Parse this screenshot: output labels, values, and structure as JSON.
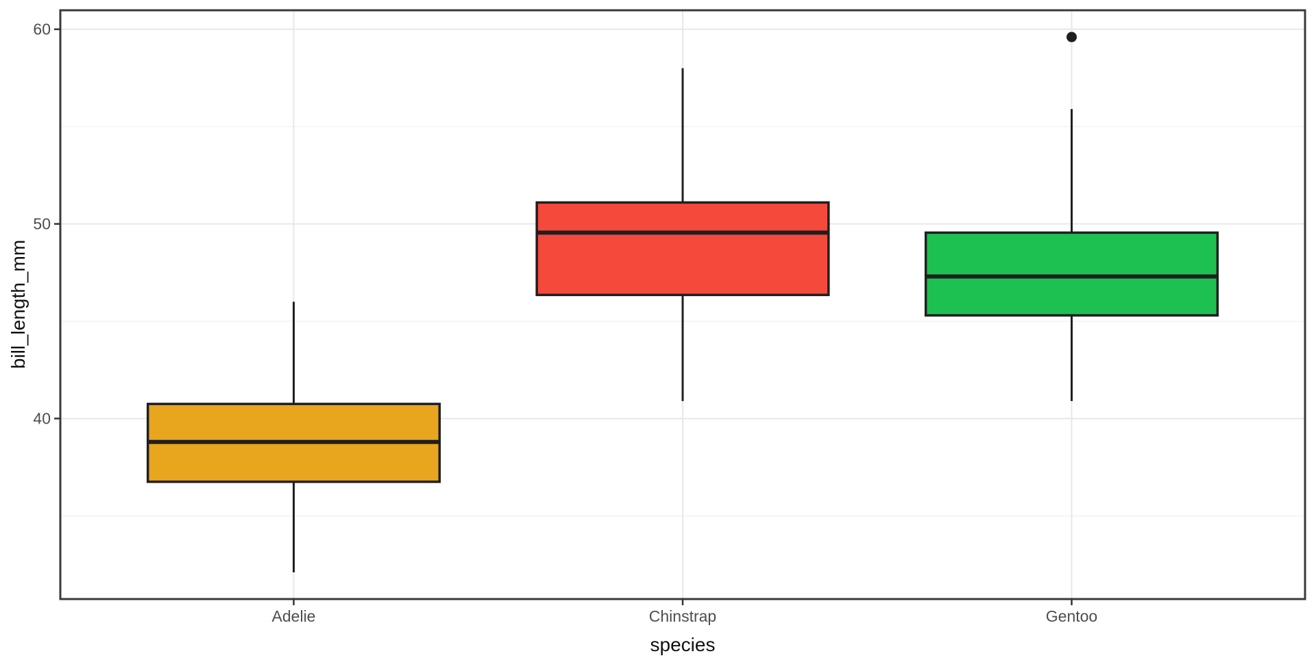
{
  "chart_data": {
    "type": "boxplot",
    "title": "",
    "xlabel": "species",
    "ylabel": "bill_length_mm",
    "categories": [
      "Adelie",
      "Chinstrap",
      "Gentoo"
    ],
    "series": [
      {
        "name": "Adelie",
        "min": 32.1,
        "q1": 36.75,
        "median": 38.8,
        "q3": 40.75,
        "max": 46.0,
        "outliers": [],
        "fill": "#E8A51E"
      },
      {
        "name": "Chinstrap",
        "min": 40.9,
        "q1": 46.35,
        "median": 49.55,
        "q3": 51.1,
        "max": 58.0,
        "outliers": [],
        "fill": "#F4493B"
      },
      {
        "name": "Gentoo",
        "min": 40.9,
        "q1": 45.3,
        "median": 47.3,
        "q3": 49.55,
        "max": 55.9,
        "outliers": [
          59.6
        ],
        "fill": "#1DC152"
      }
    ],
    "y_ticks": [
      40,
      50,
      60
    ],
    "y_tick_labels": [
      "40",
      "50",
      "60"
    ],
    "y_minor_ticks": [
      35,
      45,
      55
    ],
    "ylim": [
      30.725,
      60.975
    ],
    "box_width_units": 0.75,
    "grid": true,
    "legend": false,
    "colors": {
      "box_stroke": "#1F1F1F",
      "median": "#1F1F1F",
      "whisker": "#1F1F1F",
      "outlier": "#1F1F1F",
      "panel_border": "#3A3A3A",
      "panel_background": "#FFFFFF",
      "grid_major": "#E7E7E7",
      "grid_minor": "#F2F2F2",
      "tick": "#333333",
      "tick_label": "#4D4D4D",
      "axis_title": "#111111"
    }
  }
}
